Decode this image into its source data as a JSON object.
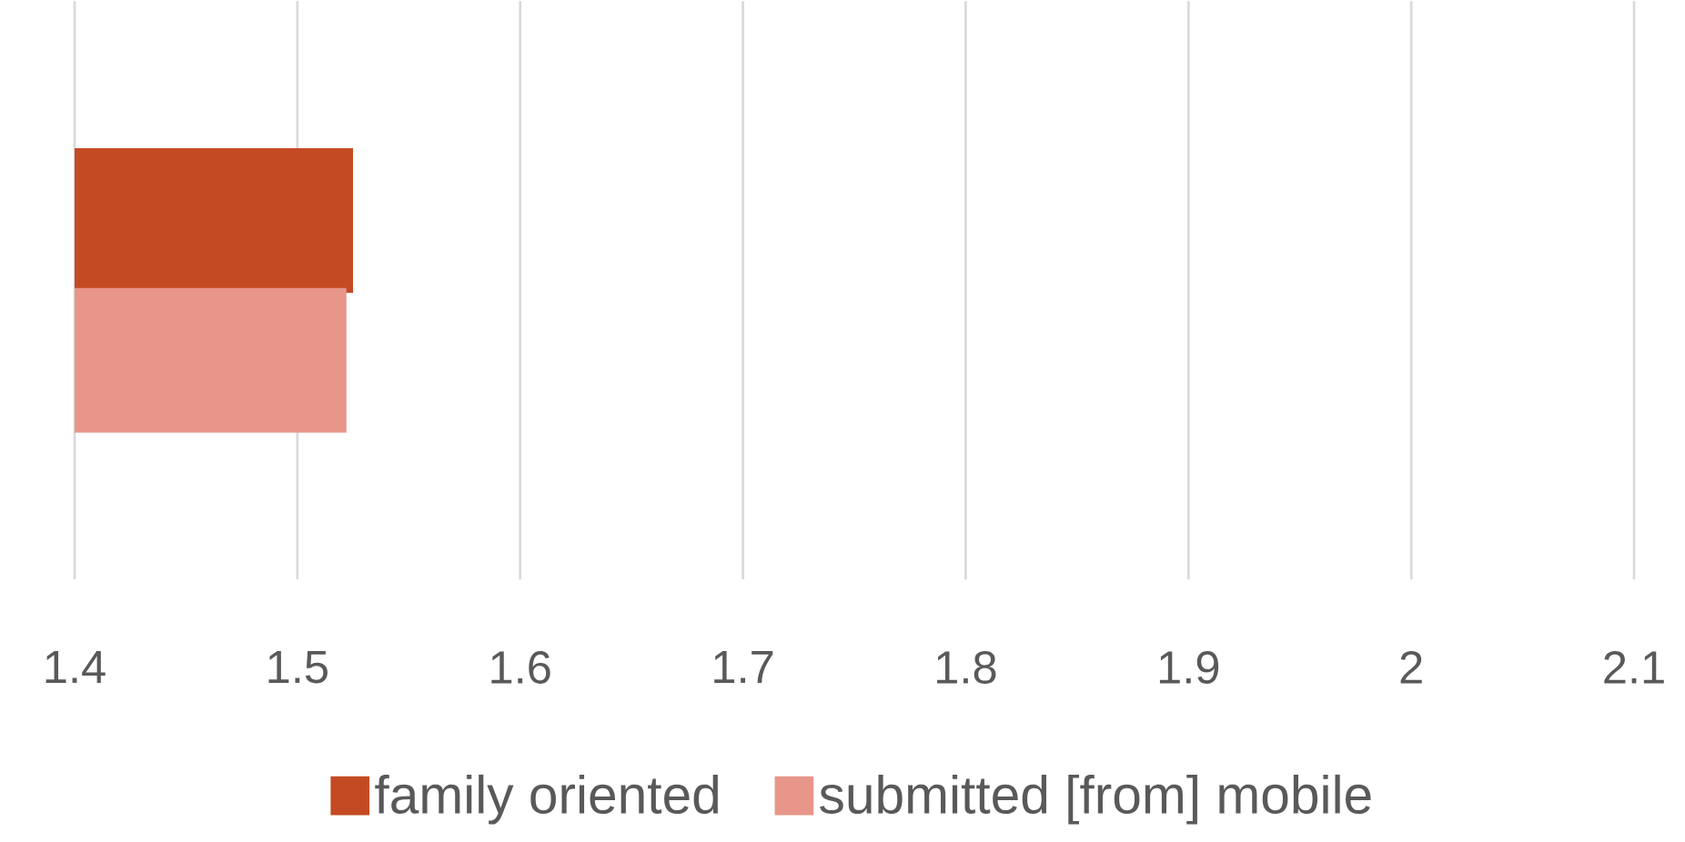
{
  "chart_data": {
    "type": "bar",
    "orientation": "horizontal",
    "categories": [
      null
    ],
    "series": [
      {
        "name": "family oriented",
        "color": "#c44a23",
        "values": [
          1.525
        ]
      },
      {
        "name": "submitted [from] mobile",
        "color": "#e8958a",
        "values": [
          1.522
        ]
      }
    ],
    "xlim": [
      1.4,
      2.1
    ],
    "xticks": [
      1.4,
      1.5,
      1.6,
      1.7,
      1.8,
      1.9,
      2,
      2.1
    ],
    "grid": "x",
    "legend": "bottom"
  }
}
